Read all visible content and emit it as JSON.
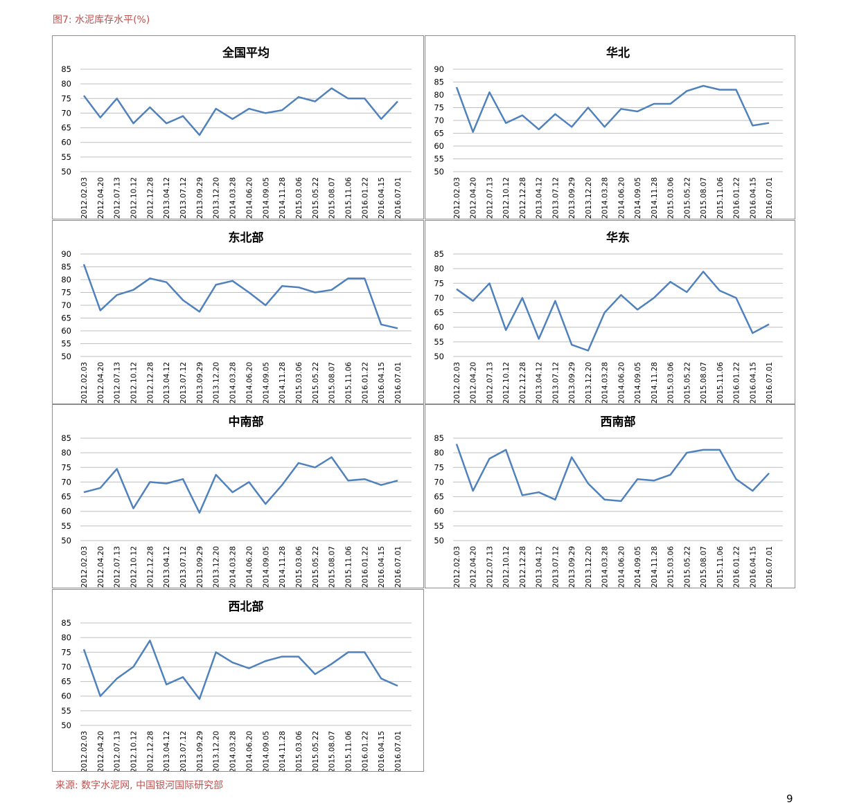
{
  "figure_title": "图7: 水泥库存水平(%)",
  "source": "来源: 数字水泥网, 中国银河国际研究部",
  "page_number": "9",
  "colors": {
    "line": "#4f81bd",
    "grid": "#bfbfbf",
    "accent_text": "#c0504d"
  },
  "x_tick_labels": [
    "2012.02.03",
    "2012.04.20",
    "2012.07.13",
    "2012.10.12",
    "2012.12.28",
    "2013.04.12",
    "2013.07.12",
    "2013.09.29",
    "2013.12.20",
    "2014.03.28",
    "2014.06.20",
    "2014.09.05",
    "2014.11.28",
    "2015.03.06",
    "2015.05.22",
    "2015.08.07",
    "2015.11.06",
    "2016.01.22",
    "2016.04.15",
    "2016.07.01"
  ],
  "chart_data": [
    {
      "type": "line",
      "title": "全国平均",
      "ylim": [
        50,
        85
      ],
      "yticks": [
        50,
        55,
        60,
        65,
        70,
        75,
        80,
        85
      ],
      "grid": "horizontal",
      "x": [
        "2012.02.03",
        "2012.04.20",
        "2012.07.13",
        "2012.10.12",
        "2012.12.28",
        "2013.04.12",
        "2013.07.12",
        "2013.09.29",
        "2013.12.20",
        "2014.03.28",
        "2014.06.20",
        "2014.09.05",
        "2014.11.28",
        "2015.03.06",
        "2015.05.22",
        "2015.08.07",
        "2015.11.06",
        "2016.01.22",
        "2016.04.15",
        "2016.07.01"
      ],
      "values": [
        76,
        68.5,
        75,
        66.5,
        72,
        66.5,
        69,
        62.5,
        71.5,
        68,
        71.5,
        70,
        71,
        75.5,
        74,
        78.5,
        75,
        75,
        68,
        74
      ]
    },
    {
      "type": "line",
      "title": "华北",
      "ylim": [
        50,
        90
      ],
      "yticks": [
        50,
        55,
        60,
        65,
        70,
        75,
        80,
        85,
        90
      ],
      "grid": "horizontal",
      "x": [
        "2012.02.03",
        "2012.04.20",
        "2012.07.13",
        "2012.10.12",
        "2012.12.28",
        "2013.04.12",
        "2013.07.12",
        "2013.09.29",
        "2013.12.20",
        "2014.03.28",
        "2014.06.20",
        "2014.09.05",
        "2014.11.28",
        "2015.03.06",
        "2015.05.22",
        "2015.08.07",
        "2015.11.06",
        "2016.01.22",
        "2016.04.15",
        "2016.07.01"
      ],
      "values": [
        83,
        65.5,
        81,
        69,
        72,
        66.5,
        72.5,
        67.5,
        75,
        67.5,
        74.5,
        73.5,
        76.5,
        76.5,
        81.5,
        83.5,
        82,
        82,
        68,
        69
      ]
    },
    {
      "type": "line",
      "title": "东北部",
      "ylim": [
        50,
        90
      ],
      "yticks": [
        50,
        55,
        60,
        65,
        70,
        75,
        80,
        85,
        90
      ],
      "grid": "horizontal",
      "x": [
        "2012.02.03",
        "2012.04.20",
        "2012.07.13",
        "2012.10.12",
        "2012.12.28",
        "2013.04.12",
        "2013.07.12",
        "2013.09.29",
        "2013.12.20",
        "2014.03.28",
        "2014.06.20",
        "2014.09.05",
        "2014.11.28",
        "2015.03.06",
        "2015.05.22",
        "2015.08.07",
        "2015.11.06",
        "2016.01.22",
        "2016.04.15",
        "2016.07.01"
      ],
      "values": [
        86,
        68,
        74,
        76,
        80.5,
        79,
        72,
        67.5,
        78,
        79.5,
        75,
        70,
        77.5,
        77,
        75,
        76,
        80.5,
        80.5,
        62.5,
        61
      ]
    },
    {
      "type": "line",
      "title": "华东",
      "ylim": [
        50,
        85
      ],
      "yticks": [
        50,
        55,
        60,
        65,
        70,
        75,
        80,
        85
      ],
      "grid": "horizontal",
      "x": [
        "2012.02.03",
        "2012.04.20",
        "2012.07.13",
        "2012.10.12",
        "2012.12.28",
        "2013.04.12",
        "2013.07.12",
        "2013.09.29",
        "2013.12.20",
        "2014.03.28",
        "2014.06.20",
        "2014.09.05",
        "2014.11.28",
        "2015.03.06",
        "2015.05.22",
        "2015.08.07",
        "2015.11.06",
        "2016.01.22",
        "2016.04.15",
        "2016.07.01"
      ],
      "values": [
        73,
        69,
        75,
        59,
        70,
        56,
        69,
        54,
        52,
        65,
        71,
        66,
        70,
        75.5,
        72,
        79,
        72.5,
        70,
        58,
        61
      ]
    },
    {
      "type": "line",
      "title": "中南部",
      "ylim": [
        50,
        85
      ],
      "yticks": [
        50,
        55,
        60,
        65,
        70,
        75,
        80,
        85
      ],
      "grid": "horizontal",
      "x": [
        "2012.02.03",
        "2012.04.20",
        "2012.07.13",
        "2012.10.12",
        "2012.12.28",
        "2013.04.12",
        "2013.07.12",
        "2013.09.29",
        "2013.12.20",
        "2014.03.28",
        "2014.06.20",
        "2014.09.05",
        "2014.11.28",
        "2015.03.06",
        "2015.05.22",
        "2015.08.07",
        "2015.11.06",
        "2016.01.22",
        "2016.04.15",
        "2016.07.01"
      ],
      "values": [
        66.5,
        68,
        74.5,
        61,
        70,
        69.5,
        71,
        59.5,
        72.5,
        66.5,
        70,
        62.5,
        69,
        76.5,
        75,
        78.5,
        70.5,
        71,
        69,
        70.5
      ]
    },
    {
      "type": "line",
      "title": "西南部",
      "ylim": [
        50,
        85
      ],
      "yticks": [
        50,
        55,
        60,
        65,
        70,
        75,
        80,
        85
      ],
      "grid": "horizontal",
      "x": [
        "2012.02.03",
        "2012.04.20",
        "2012.07.13",
        "2012.10.12",
        "2012.12.28",
        "2013.04.12",
        "2013.07.12",
        "2013.09.29",
        "2013.12.20",
        "2014.03.28",
        "2014.06.20",
        "2014.09.05",
        "2014.11.28",
        "2015.03.06",
        "2015.05.22",
        "2015.08.07",
        "2015.11.06",
        "2016.01.22",
        "2016.04.15",
        "2016.07.01"
      ],
      "values": [
        83,
        67,
        78,
        81,
        65.5,
        66.5,
        64,
        78.5,
        69.5,
        64,
        63.5,
        71,
        70.5,
        72.5,
        80,
        81,
        81,
        71,
        67,
        73
      ]
    },
    {
      "type": "line",
      "title": "西北部",
      "ylim": [
        50,
        85
      ],
      "yticks": [
        50,
        55,
        60,
        65,
        70,
        75,
        80,
        85
      ],
      "grid": "horizontal",
      "x": [
        "2012.02.03",
        "2012.04.20",
        "2012.07.13",
        "2012.10.12",
        "2012.12.28",
        "2013.04.12",
        "2013.07.12",
        "2013.09.29",
        "2013.12.20",
        "2014.03.28",
        "2014.06.20",
        "2014.09.05",
        "2014.11.28",
        "2015.03.06",
        "2015.05.22",
        "2015.08.07",
        "2015.11.06",
        "2016.01.22",
        "2016.04.15",
        "2016.07.01"
      ],
      "values": [
        76,
        60,
        66,
        70,
        79,
        64,
        66.5,
        59,
        75,
        71.5,
        69.5,
        72,
        73.5,
        73.5,
        67.5,
        71,
        75,
        75,
        66,
        63.5
      ]
    }
  ]
}
